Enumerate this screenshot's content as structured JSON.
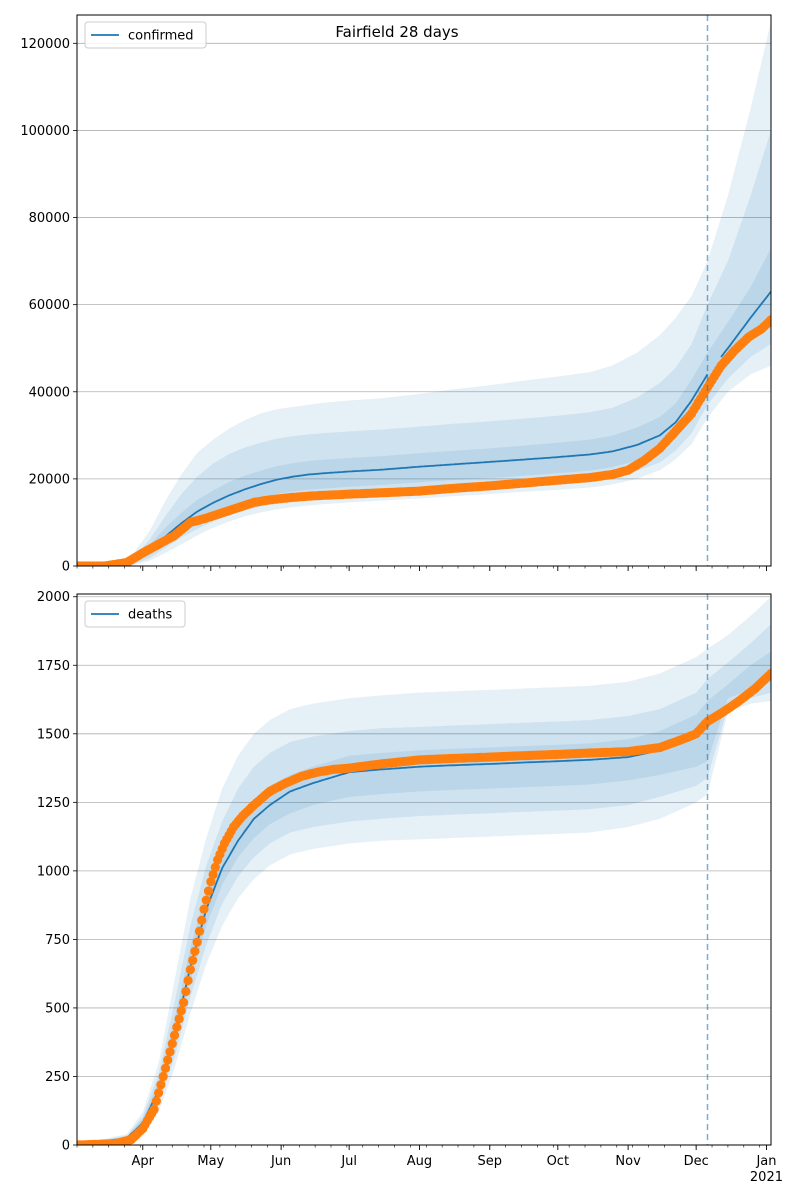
{
  "figure": {
    "title": "Fairfield 28 days"
  },
  "colors": {
    "model_line": "#1f77b4",
    "band": "#1f77b4",
    "observed": "#ff7f0e",
    "grid": "#b0b0b0",
    "vline": "#1f77b4"
  },
  "chart_data": [
    {
      "type": "line",
      "legend": [
        "confirmed"
      ],
      "legend_position": "top-left",
      "grid": "horizontal",
      "xlim": [
        "2020-03-03",
        "2021-01-03"
      ],
      "x_ticks": [
        {
          "date": "2020-04-01",
          "label": "Apr"
        },
        {
          "date": "2020-05-01",
          "label": "May"
        },
        {
          "date": "2020-06-01",
          "label": "Jun"
        },
        {
          "date": "2020-07-01",
          "label": "Jul"
        },
        {
          "date": "2020-08-01",
          "label": "Aug"
        },
        {
          "date": "2020-09-01",
          "label": "Sep"
        },
        {
          "date": "2020-10-01",
          "label": "Oct"
        },
        {
          "date": "2020-11-01",
          "label": "Nov"
        },
        {
          "date": "2020-12-01",
          "label": "Dec"
        },
        {
          "date": "2021-01-01",
          "label": "Jan\n2021"
        }
      ],
      "ylim": [
        0,
        126500
      ],
      "y_ticks": [
        0,
        20000,
        40000,
        60000,
        80000,
        100000,
        120000
      ],
      "y_tick_labels": [
        "0",
        "20000",
        "40000",
        "60000",
        "80000",
        "100000",
        "120000"
      ],
      "forecast_start": "2020-12-06",
      "model": {
        "x": [
          "2020-03-03",
          "2020-03-20",
          "2020-03-28",
          "2020-04-04",
          "2020-04-11",
          "2020-04-18",
          "2020-04-25",
          "2020-05-02",
          "2020-05-09",
          "2020-05-16",
          "2020-05-23",
          "2020-05-30",
          "2020-06-06",
          "2020-06-13",
          "2020-06-20",
          "2020-07-01",
          "2020-07-15",
          "2020-08-01",
          "2020-08-15",
          "2020-09-01",
          "2020-09-15",
          "2020-10-01",
          "2020-10-15",
          "2020-10-25",
          "2020-11-05",
          "2020-11-15",
          "2020-11-22",
          "2020-11-29",
          "2020-12-06",
          "2020-12-15",
          "2020-12-25",
          "2021-01-03"
        ],
        "median": [
          0,
          200,
          1000,
          3500,
          6800,
          9800,
          12500,
          14500,
          16200,
          17600,
          18800,
          19800,
          20500,
          21000,
          21300,
          21700,
          22100,
          22800,
          23300,
          23900,
          24400,
          25000,
          25600,
          26300,
          27800,
          30000,
          33000,
          38000,
          44000,
          50000,
          57000,
          63000
        ],
        "bands": [
          {
            "lower": [
              0,
              0,
              200,
              1200,
              3000,
              5000,
              7000,
              8800,
              10200,
              11400,
              12300,
              13000,
              13500,
              13900,
              14200,
              14600,
              15000,
              15500,
              16000,
              16500,
              17000,
              17500,
              18000,
              18700,
              20000,
              22000,
              24500,
              28000,
              34000,
              40000,
              44000,
              46000
            ],
            "upper": [
              0,
              600,
              3000,
              8000,
              15000,
              21000,
              26000,
              29000,
              31500,
              33500,
              35000,
              36000,
              36500,
              37000,
              37500,
              38000,
              38500,
              39500,
              40500,
              41500,
              42500,
              43500,
              44500,
              46000,
              49000,
              53000,
              57000,
              62000,
              70000,
              85000,
              105000,
              125000
            ]
          },
          {
            "lower": [
              0,
              0,
              400,
              1800,
              4200,
              6500,
              8500,
              10200,
              11600,
              12700,
              13600,
              14300,
              14800,
              15200,
              15500,
              15900,
              16300,
              16900,
              17400,
              17900,
              18400,
              19000,
              19600,
              20400,
              21800,
              23800,
              26500,
              30500,
              37000,
              43000,
              48000,
              51000
            ],
            "upper": [
              0,
              400,
              2000,
              6000,
              11500,
              16500,
              20500,
              23500,
              25700,
              27200,
              28300,
              29200,
              29800,
              30200,
              30500,
              30900,
              31300,
              32000,
              32600,
              33200,
              33800,
              34500,
              35300,
              36300,
              38700,
              42000,
              45500,
              51000,
              60000,
              70000,
              85000,
              100000
            ]
          },
          {
            "lower": [
              0,
              100,
              600,
              2500,
              5300,
              8000,
              10300,
              12000,
              13500,
              14700,
              15700,
              16500,
              17100,
              17500,
              17800,
              18200,
              18600,
              19200,
              19700,
              20200,
              20700,
              21300,
              21900,
              22700,
              24200,
              26400,
              29300,
              33500,
              40000,
              46000,
              52000,
              56000
            ],
            "upper": [
              0,
              300,
              1500,
              4800,
              8800,
              12200,
              15200,
              17300,
              19300,
              20700,
              21900,
              22900,
              23600,
              24100,
              24400,
              24800,
              25200,
              25900,
              26400,
              27000,
              27600,
              28300,
              29000,
              29900,
              31800,
              34200,
              37300,
              42800,
              49000,
              56000,
              64000,
              73000
            ]
          }
        ]
      },
      "observed": {
        "x": [
          "2020-03-03",
          "2020-03-15",
          "2020-03-25",
          "2020-04-01",
          "2020-04-08",
          "2020-04-15",
          "2020-04-22",
          "2020-04-29",
          "2020-05-06",
          "2020-05-13",
          "2020-05-20",
          "2020-05-27",
          "2020-06-05",
          "2020-06-15",
          "2020-07-01",
          "2020-07-15",
          "2020-08-01",
          "2020-08-15",
          "2020-09-01",
          "2020-09-15",
          "2020-10-01",
          "2020-10-15",
          "2020-10-25",
          "2020-11-01",
          "2020-11-08",
          "2020-11-15",
          "2020-11-22",
          "2020-11-29",
          "2020-12-06",
          "2020-12-12",
          "2020-12-18",
          "2020-12-24",
          "2020-12-30",
          "2021-01-03"
        ],
        "y": [
          0,
          0,
          800,
          3000,
          5000,
          7000,
          10000,
          11000,
          12200,
          13400,
          14600,
          15200,
          15700,
          16100,
          16500,
          16800,
          17200,
          17800,
          18400,
          19000,
          19700,
          20300,
          21000,
          22000,
          24200,
          27000,
          31000,
          35000,
          41000,
          46000,
          49500,
          52500,
          54500,
          56500
        ]
      }
    },
    {
      "type": "line",
      "legend": [
        "deaths"
      ],
      "legend_position": "top-left",
      "grid": "horizontal",
      "xlim": [
        "2020-03-03",
        "2021-01-03"
      ],
      "ylim": [
        0,
        2010
      ],
      "y_ticks": [
        0,
        250,
        500,
        750,
        1000,
        1250,
        1500,
        1750,
        2000
      ],
      "y_tick_labels": [
        "0",
        "250",
        "500",
        "750",
        "1000",
        "1250",
        "1500",
        "1750",
        "2000"
      ],
      "forecast_start": "2020-12-06",
      "model": {
        "x": [
          "2020-03-03",
          "2020-03-25",
          "2020-04-01",
          "2020-04-08",
          "2020-04-15",
          "2020-04-22",
          "2020-04-29",
          "2020-05-06",
          "2020-05-13",
          "2020-05-20",
          "2020-05-27",
          "2020-06-05",
          "2020-06-15",
          "2020-07-01",
          "2020-07-15",
          "2020-08-01",
          "2020-08-15",
          "2020-09-01",
          "2020-09-15",
          "2020-10-01",
          "2020-10-15",
          "2020-11-01",
          "2020-11-15",
          "2020-12-01",
          "2020-12-06",
          "2020-12-15",
          "2020-12-25",
          "2021-01-03"
        ],
        "median": [
          0,
          25,
          80,
          200,
          400,
          650,
          860,
          1010,
          1110,
          1190,
          1240,
          1290,
          1320,
          1360,
          1370,
          1380,
          1385,
          1390,
          1395,
          1400,
          1405,
          1415,
          1440,
          1500,
          1550,
          1600,
          1660,
          1720
        ],
        "bands": [
          {
            "lower": [
              0,
              10,
              40,
              120,
              280,
              480,
              660,
              800,
              900,
              970,
              1020,
              1060,
              1080,
              1100,
              1110,
              1115,
              1120,
              1125,
              1130,
              1135,
              1140,
              1160,
              1190,
              1250,
              1280,
              1580,
              1610,
              1620
            ],
            "upper": [
              0,
              40,
              120,
              300,
              600,
              900,
              1120,
              1300,
              1420,
              1500,
              1550,
              1590,
              1610,
              1630,
              1640,
              1650,
              1655,
              1660,
              1665,
              1670,
              1675,
              1690,
              1720,
              1780,
              1810,
              1860,
              1930,
              2000
            ]
          },
          {
            "lower": [
              0,
              15,
              55,
              150,
              320,
              540,
              730,
              880,
              980,
              1050,
              1100,
              1140,
              1160,
              1180,
              1190,
              1200,
              1205,
              1210,
              1215,
              1220,
              1225,
              1240,
              1270,
              1310,
              1340,
              1600,
              1630,
              1650
            ],
            "upper": [
              0,
              35,
              105,
              260,
              520,
              800,
              1020,
              1180,
              1300,
              1380,
              1430,
              1470,
              1490,
              1510,
              1520,
              1525,
              1530,
              1535,
              1540,
              1545,
              1550,
              1565,
              1590,
              1650,
              1700,
              1760,
              1830,
              1900
            ]
          },
          {
            "lower": [
              0,
              20,
              65,
              170,
              360,
              600,
              800,
              950,
              1050,
              1120,
              1170,
              1210,
              1240,
              1270,
              1280,
              1290,
              1295,
              1300,
              1305,
              1310,
              1315,
              1330,
              1350,
              1380,
              1400,
              1630,
              1660,
              1690
            ],
            "upper": [
              0,
              30,
              95,
              230,
              460,
              720,
              930,
              1080,
              1180,
              1260,
              1310,
              1350,
              1380,
              1420,
              1430,
              1440,
              1445,
              1450,
              1455,
              1460,
              1465,
              1480,
              1510,
              1570,
              1620,
              1680,
              1750,
              1800
            ]
          }
        ]
      },
      "observed": {
        "x": [
          "2020-03-03",
          "2020-03-20",
          "2020-03-27",
          "2020-04-01",
          "2020-04-06",
          "2020-04-10",
          "2020-04-15",
          "2020-04-19",
          "2020-04-22",
          "2020-04-25",
          "2020-04-28",
          "2020-05-01",
          "2020-05-04",
          "2020-05-07",
          "2020-05-11",
          "2020-05-15",
          "2020-05-20",
          "2020-05-27",
          "2020-06-03",
          "2020-06-10",
          "2020-06-17",
          "2020-06-24",
          "2020-07-01",
          "2020-07-15",
          "2020-08-01",
          "2020-08-15",
          "2020-09-01",
          "2020-09-15",
          "2020-10-01",
          "2020-10-15",
          "2020-11-01",
          "2020-11-15",
          "2020-11-25",
          "2020-12-01",
          "2020-12-06",
          "2020-12-13",
          "2020-12-20",
          "2020-12-27",
          "2021-01-03"
        ],
        "y": [
          0,
          5,
          20,
          60,
          130,
          250,
          400,
          520,
          640,
          740,
          860,
          960,
          1040,
          1100,
          1160,
          1200,
          1240,
          1290,
          1320,
          1345,
          1360,
          1370,
          1375,
          1390,
          1405,
          1410,
          1415,
          1420,
          1425,
          1430,
          1435,
          1450,
          1480,
          1500,
          1545,
          1580,
          1620,
          1665,
          1720
        ]
      }
    }
  ]
}
